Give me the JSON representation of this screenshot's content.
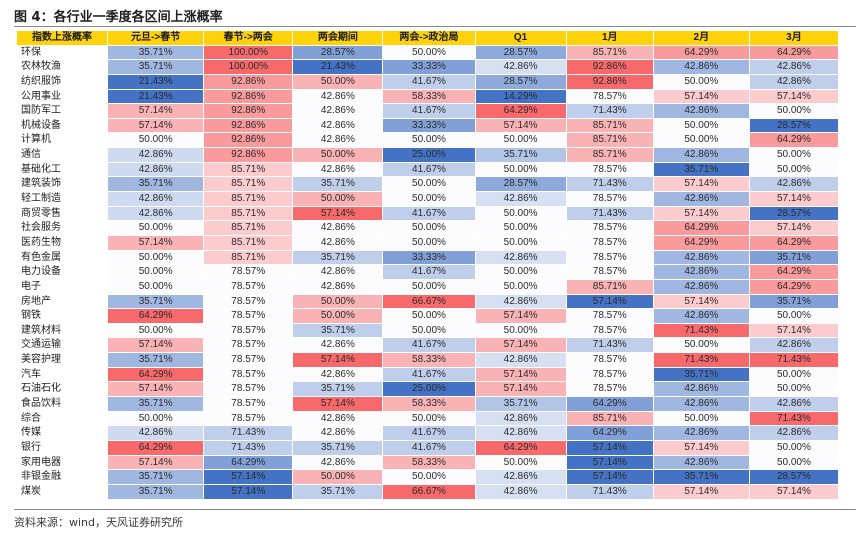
{
  "title": "图 4：各行业一季度各区间上涨概率",
  "source": "资料来源：wind，天风证券研究所",
  "colors": {
    "header": "#ffd20a",
    "scale_low": "#4472c4",
    "scale_mid": "#fcfcff",
    "scale_high": "#f8696b"
  },
  "chart_data": {
    "type": "table",
    "color_scale": "per-column diverging: blue = low, white = middle, red = high",
    "columns": [
      "指数上涨概率",
      "元旦->春节",
      "春节->两会",
      "两会期间",
      "两会->政治局",
      "Q1",
      "1月",
      "2月",
      "3月"
    ],
    "rows": [
      {
        "name": "环保",
        "values": [
          35.71,
          100.0,
          28.57,
          50.0,
          28.57,
          85.71,
          64.29,
          64.29
        ]
      },
      {
        "name": "农林牧渔",
        "values": [
          35.71,
          100.0,
          21.43,
          33.33,
          42.86,
          92.86,
          42.86,
          42.86
        ]
      },
      {
        "name": "纺织服饰",
        "values": [
          21.43,
          92.86,
          50.0,
          41.67,
          28.57,
          92.86,
          50.0,
          42.86
        ]
      },
      {
        "name": "公用事业",
        "values": [
          21.43,
          92.86,
          42.86,
          58.33,
          14.29,
          78.57,
          57.14,
          57.14
        ]
      },
      {
        "name": "国防军工",
        "values": [
          57.14,
          92.86,
          42.86,
          41.67,
          64.29,
          71.43,
          42.86,
          50.0
        ]
      },
      {
        "name": "机械设备",
        "values": [
          57.14,
          92.86,
          42.86,
          33.33,
          57.14,
          85.71,
          50.0,
          28.57
        ]
      },
      {
        "name": "计算机",
        "values": [
          50.0,
          92.86,
          42.86,
          50.0,
          50.0,
          85.71,
          50.0,
          64.29
        ]
      },
      {
        "name": "通信",
        "values": [
          42.86,
          92.86,
          50.0,
          25.0,
          35.71,
          85.71,
          42.86,
          50.0
        ]
      },
      {
        "name": "基础化工",
        "values": [
          42.86,
          85.71,
          42.86,
          41.67,
          50.0,
          78.57,
          35.71,
          50.0
        ]
      },
      {
        "name": "建筑装饰",
        "values": [
          35.71,
          85.71,
          35.71,
          50.0,
          28.57,
          71.43,
          57.14,
          42.86
        ]
      },
      {
        "name": "轻工制造",
        "values": [
          42.86,
          85.71,
          50.0,
          50.0,
          42.86,
          78.57,
          42.86,
          57.14
        ]
      },
      {
        "name": "商贸零售",
        "values": [
          42.86,
          85.71,
          57.14,
          41.67,
          50.0,
          71.43,
          57.14,
          28.57
        ]
      },
      {
        "name": "社会服务",
        "values": [
          50.0,
          85.71,
          42.86,
          50.0,
          50.0,
          78.57,
          64.29,
          57.14
        ]
      },
      {
        "name": "医药生物",
        "values": [
          57.14,
          85.71,
          42.86,
          50.0,
          50.0,
          78.57,
          64.29,
          64.29
        ]
      },
      {
        "name": "有色金属",
        "values": [
          50.0,
          85.71,
          35.71,
          33.33,
          42.86,
          78.57,
          42.86,
          35.71
        ]
      },
      {
        "name": "电力设备",
        "values": [
          50.0,
          78.57,
          42.86,
          41.67,
          50.0,
          78.57,
          42.86,
          64.29
        ]
      },
      {
        "name": "电子",
        "values": [
          50.0,
          78.57,
          42.86,
          50.0,
          50.0,
          85.71,
          42.86,
          64.29
        ]
      },
      {
        "name": "房地产",
        "values": [
          35.71,
          78.57,
          50.0,
          66.67,
          42.86,
          57.14,
          57.14,
          35.71
        ]
      },
      {
        "name": "钢铁",
        "values": [
          64.29,
          78.57,
          50.0,
          50.0,
          57.14,
          78.57,
          42.86,
          50.0
        ]
      },
      {
        "name": "建筑材料",
        "values": [
          50.0,
          78.57,
          35.71,
          50.0,
          50.0,
          78.57,
          71.43,
          57.14
        ]
      },
      {
        "name": "交通运输",
        "values": [
          57.14,
          78.57,
          42.86,
          41.67,
          57.14,
          71.43,
          50.0,
          42.86
        ]
      },
      {
        "name": "美容护理",
        "values": [
          35.71,
          78.57,
          57.14,
          58.33,
          42.86,
          78.57,
          71.43,
          71.43
        ]
      },
      {
        "name": "汽车",
        "values": [
          64.29,
          78.57,
          42.86,
          41.67,
          57.14,
          78.57,
          35.71,
          50.0
        ]
      },
      {
        "name": "石油石化",
        "values": [
          57.14,
          78.57,
          35.71,
          25.0,
          57.14,
          78.57,
          42.86,
          50.0
        ]
      },
      {
        "name": "食品饮料",
        "values": [
          35.71,
          78.57,
          57.14,
          58.33,
          35.71,
          64.29,
          42.86,
          42.86
        ]
      },
      {
        "name": "综合",
        "values": [
          50.0,
          78.57,
          42.86,
          50.0,
          42.86,
          85.71,
          50.0,
          71.43
        ]
      },
      {
        "name": "传媒",
        "values": [
          42.86,
          71.43,
          42.86,
          41.67,
          42.86,
          64.29,
          42.86,
          42.86
        ]
      },
      {
        "name": "银行",
        "values": [
          64.29,
          71.43,
          35.71,
          41.67,
          64.29,
          57.14,
          57.14,
          50.0
        ]
      },
      {
        "name": "家用电器",
        "values": [
          57.14,
          64.29,
          42.86,
          58.33,
          50.0,
          57.14,
          42.86,
          50.0
        ]
      },
      {
        "name": "非银金融",
        "values": [
          35.71,
          57.14,
          50.0,
          50.0,
          42.86,
          57.14,
          35.71,
          28.57
        ]
      },
      {
        "name": "煤炭",
        "values": [
          35.71,
          57.14,
          35.71,
          66.67,
          42.86,
          71.43,
          57.14,
          57.14
        ]
      }
    ]
  }
}
